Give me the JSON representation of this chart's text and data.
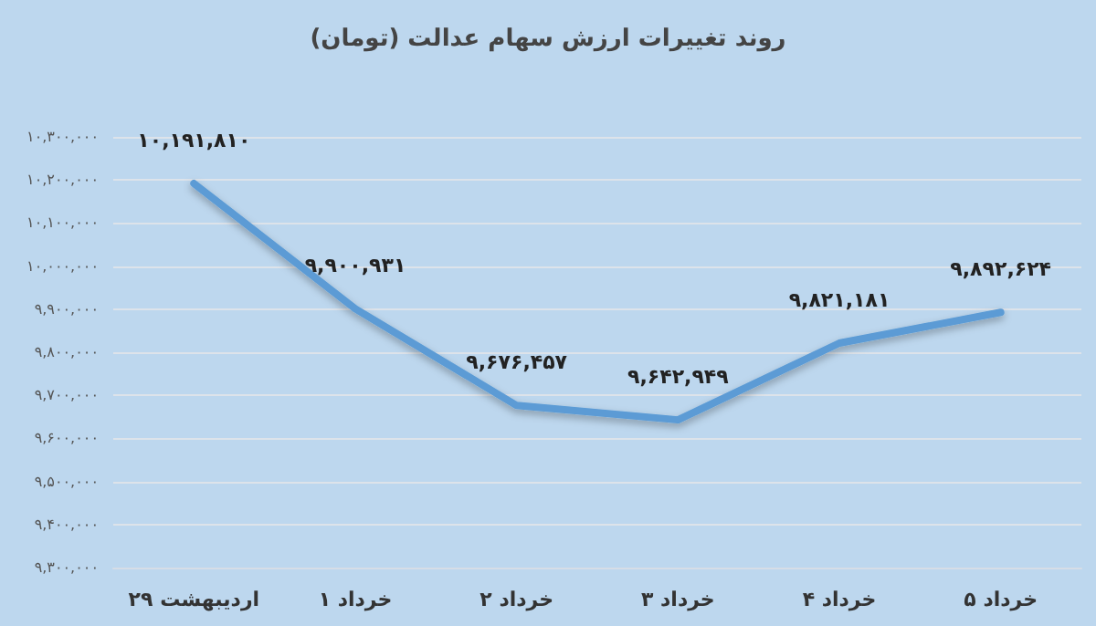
{
  "chart_data": {
    "type": "line",
    "title": "روند تغییرات ارزش سهام عدالت (تومان)",
    "categories": [
      "۲۹ اردیبهشت",
      "۱ خرداد",
      "۲ خرداد",
      "۳ خرداد",
      "۴ خرداد",
      "۵ خرداد"
    ],
    "series": [
      {
        "color": "#5b9bd5",
        "values": [
          10191810,
          9900931,
          9676457,
          9642949,
          9821181,
          9892624
        ],
        "value_labels": [
          "۱۰,۱۹۱,۸۱۰",
          "۹,۹۰۰,۹۳۱",
          "۹,۶۷۶,۴۵۷",
          "۹,۶۴۲,۹۴۹",
          "۹,۸۲۱,۱۸۱",
          "۹,۸۹۲,۶۲۴"
        ]
      }
    ],
    "ylim": [
      9300000,
      10300000
    ],
    "yticks": [
      {
        "value": 9300000,
        "label": "۹,۳۰۰,۰۰۰"
      },
      {
        "value": 9400000,
        "label": "۹,۴۰۰,۰۰۰"
      },
      {
        "value": 9500000,
        "label": "۹,۵۰۰,۰۰۰"
      },
      {
        "value": 9600000,
        "label": "۹,۶۰۰,۰۰۰"
      },
      {
        "value": 9700000,
        "label": "۹,۷۰۰,۰۰۰"
      },
      {
        "value": 9800000,
        "label": "۹,۸۰۰,۰۰۰"
      },
      {
        "value": 9900000,
        "label": "۹,۹۰۰,۰۰۰"
      },
      {
        "value": 10000000,
        "label": "۱۰,۰۰۰,۰۰۰"
      },
      {
        "value": 10100000,
        "label": "۱۰,۱۰۰,۰۰۰"
      },
      {
        "value": 10200000,
        "label": "۱۰,۲۰۰,۰۰۰"
      },
      {
        "value": 10300000,
        "label": "۱۰,۳۰۰,۰۰۰"
      }
    ],
    "grid": "y",
    "marker": "none",
    "line_style": "solid"
  }
}
